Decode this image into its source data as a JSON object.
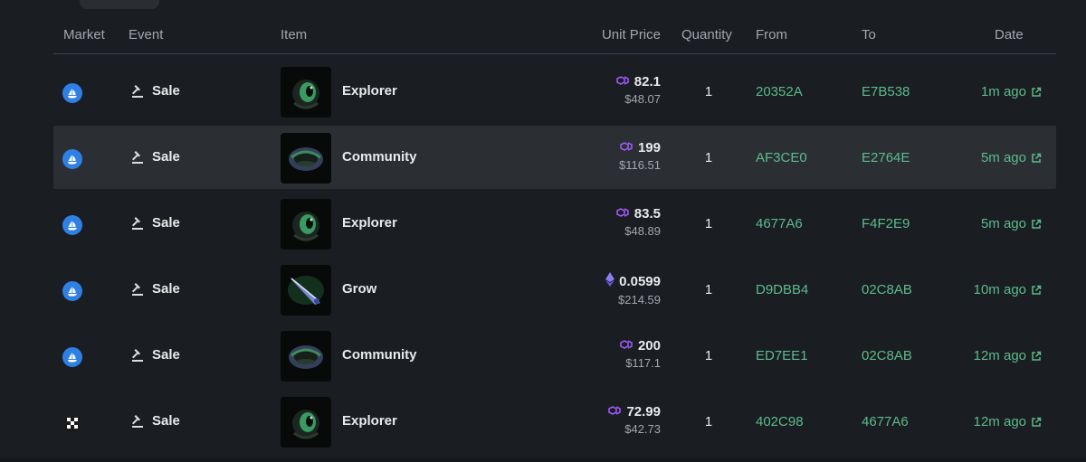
{
  "colors": {
    "background": "#1a1d21",
    "row_highlight": "#2b2f34",
    "address": "#5dbb8c",
    "polygon": "#9b59f4",
    "opensea": "#2f80e4"
  },
  "header": {
    "market": "Market",
    "event": "Event",
    "item": "Item",
    "unit_price": "Unit Price",
    "quantity": "Quantity",
    "from": "From",
    "to": "To",
    "date": "Date"
  },
  "rows": [
    {
      "market": "opensea-icon",
      "event": "Sale",
      "item": "Explorer",
      "currency": "polygon-icon",
      "price": "82.1",
      "usd": "$48.07",
      "quantity": "1",
      "from": "20352A",
      "to": "E7B538",
      "date": "1m ago"
    },
    {
      "market": "opensea-icon",
      "event": "Sale",
      "item": "Community",
      "currency": "polygon-icon",
      "price": "199",
      "usd": "$116.51",
      "quantity": "1",
      "from": "AF3CE0",
      "to": "E2764E",
      "date": "5m ago"
    },
    {
      "market": "opensea-icon",
      "event": "Sale",
      "item": "Explorer",
      "currency": "polygon-icon",
      "price": "83.5",
      "usd": "$48.89",
      "quantity": "1",
      "from": "4677A6",
      "to": "F4F2E9",
      "date": "5m ago"
    },
    {
      "market": "opensea-icon",
      "event": "Sale",
      "item": "Grow",
      "currency": "ethereum-icon",
      "price": "0.0599",
      "usd": "$214.59",
      "quantity": "1",
      "from": "D9DBB4",
      "to": "02C8AB",
      "date": "10m ago"
    },
    {
      "market": "opensea-icon",
      "event": "Sale",
      "item": "Community",
      "currency": "polygon-icon",
      "price": "200",
      "usd": "$117.1",
      "quantity": "1",
      "from": "ED7EE1",
      "to": "02C8AB",
      "date": "12m ago"
    },
    {
      "market": "okx-icon",
      "event": "Sale",
      "item": "Explorer",
      "currency": "polygon-icon",
      "price": "72.99",
      "usd": "$42.73",
      "quantity": "1",
      "from": "402C98",
      "to": "4677A6",
      "date": "12m ago"
    }
  ]
}
